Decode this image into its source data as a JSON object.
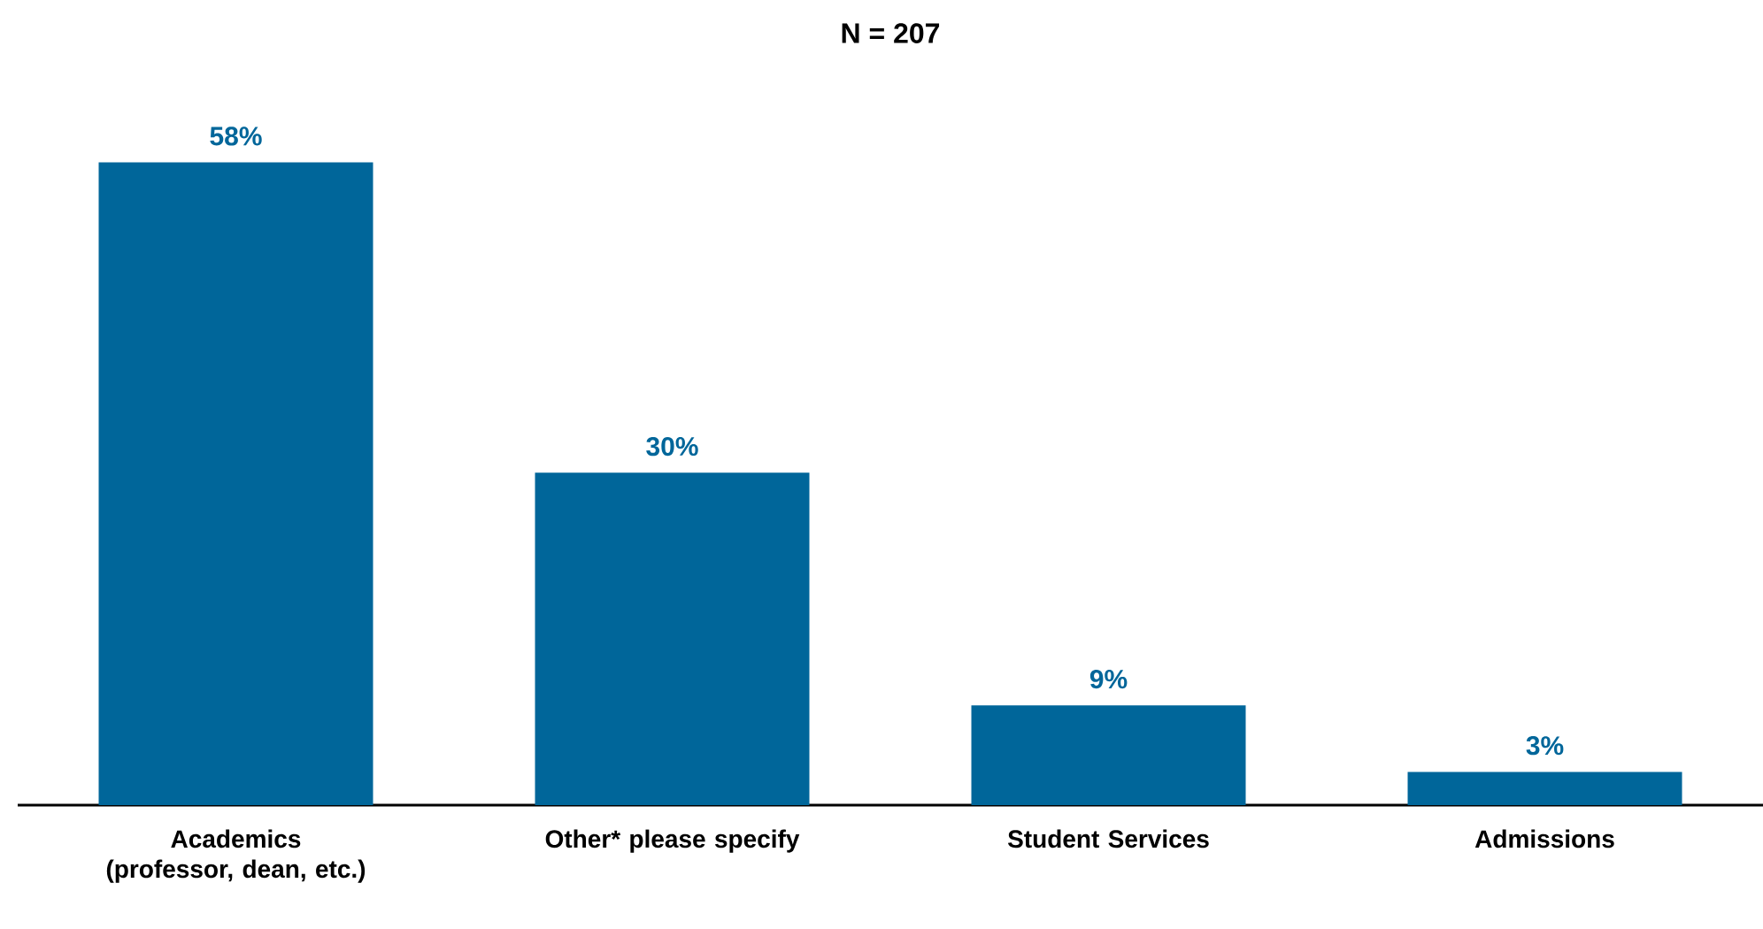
{
  "chart_data": {
    "type": "bar",
    "title": "N = 207",
    "categories": [
      "Academics (professor, dean, etc.)",
      "Other* please specify",
      "Student Services",
      "Admissions"
    ],
    "values": [
      58,
      30,
      9,
      3
    ],
    "value_labels": [
      "58%",
      "30%",
      "9%",
      "3%"
    ],
    "color": "#00669a"
  }
}
